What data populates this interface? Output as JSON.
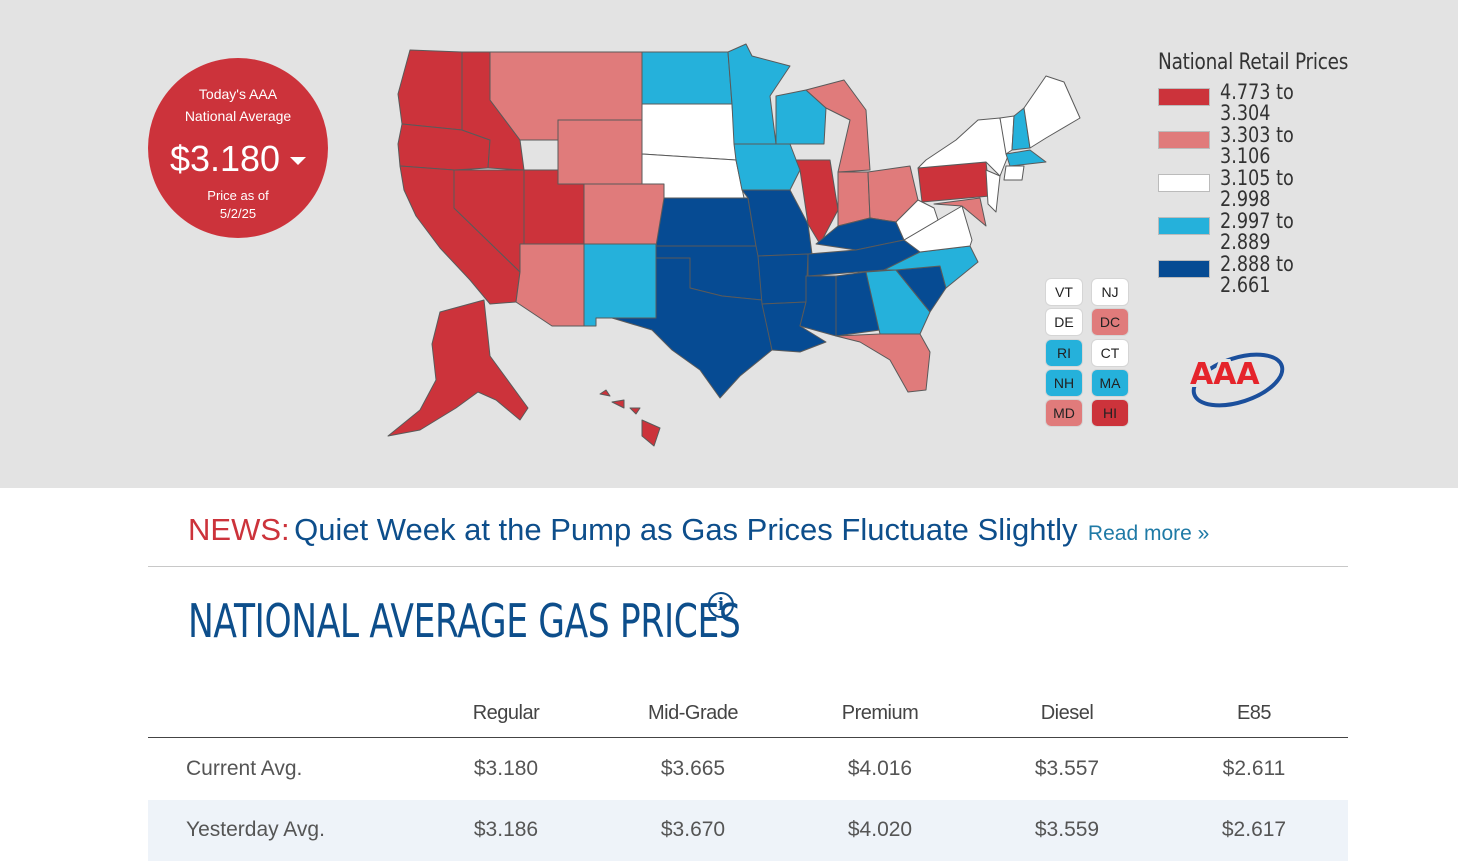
{
  "badge": {
    "line1": "Today's AAA",
    "line2": "National Average",
    "price": "$3.180",
    "as_of_label": "Price as of",
    "as_of_date": "5/2/25"
  },
  "legend": {
    "title": "National Retail Prices",
    "items": [
      {
        "label": "4.773 to 3.304",
        "color": "#cc333b"
      },
      {
        "label": "3.303 to 3.106",
        "color": "#e07b7b"
      },
      {
        "label": "3.105 to 2.998",
        "color": "#ffffff"
      },
      {
        "label": "2.997 to 2.889",
        "color": "#25b1db"
      },
      {
        "label": "2.888 to 2.661",
        "color": "#064b93"
      }
    ]
  },
  "small_states": [
    {
      "abbr": "VT",
      "color": "#ffffff"
    },
    {
      "abbr": "NJ",
      "color": "#ffffff"
    },
    {
      "abbr": "DE",
      "color": "#ffffff"
    },
    {
      "abbr": "DC",
      "color": "#e07b7b"
    },
    {
      "abbr": "RI",
      "color": "#25b1db"
    },
    {
      "abbr": "CT",
      "color": "#ffffff"
    },
    {
      "abbr": "NH",
      "color": "#25b1db"
    },
    {
      "abbr": "MA",
      "color": "#25b1db"
    },
    {
      "abbr": "MD",
      "color": "#e07b7b"
    },
    {
      "abbr": "HI",
      "color": "#cc333b"
    }
  ],
  "logo_text": "AAA",
  "news": {
    "label": "NEWS:",
    "headline": "Quiet Week at the Pump as Gas Prices Fluctuate Slightly",
    "link": "Read more »"
  },
  "section": {
    "title": "NATIONAL AVERAGE GAS PRICES",
    "info_icon": "info-icon"
  },
  "table": {
    "columns": [
      "Regular",
      "Mid-Grade",
      "Premium",
      "Diesel",
      "E85"
    ],
    "rows": [
      {
        "label": "Current Avg.",
        "values": [
          "$3.180",
          "$3.665",
          "$4.016",
          "$3.557",
          "$2.611"
        ]
      },
      {
        "label": "Yesterday Avg.",
        "values": [
          "$3.186",
          "$3.670",
          "$4.020",
          "$3.559",
          "$2.617"
        ]
      }
    ]
  },
  "colors": {
    "red": "#cc333b",
    "pink": "#e07b7b",
    "white": "#ffffff",
    "light_blue": "#25b1db",
    "dark_blue": "#064b93",
    "headline_blue": "#0d4e8b"
  }
}
